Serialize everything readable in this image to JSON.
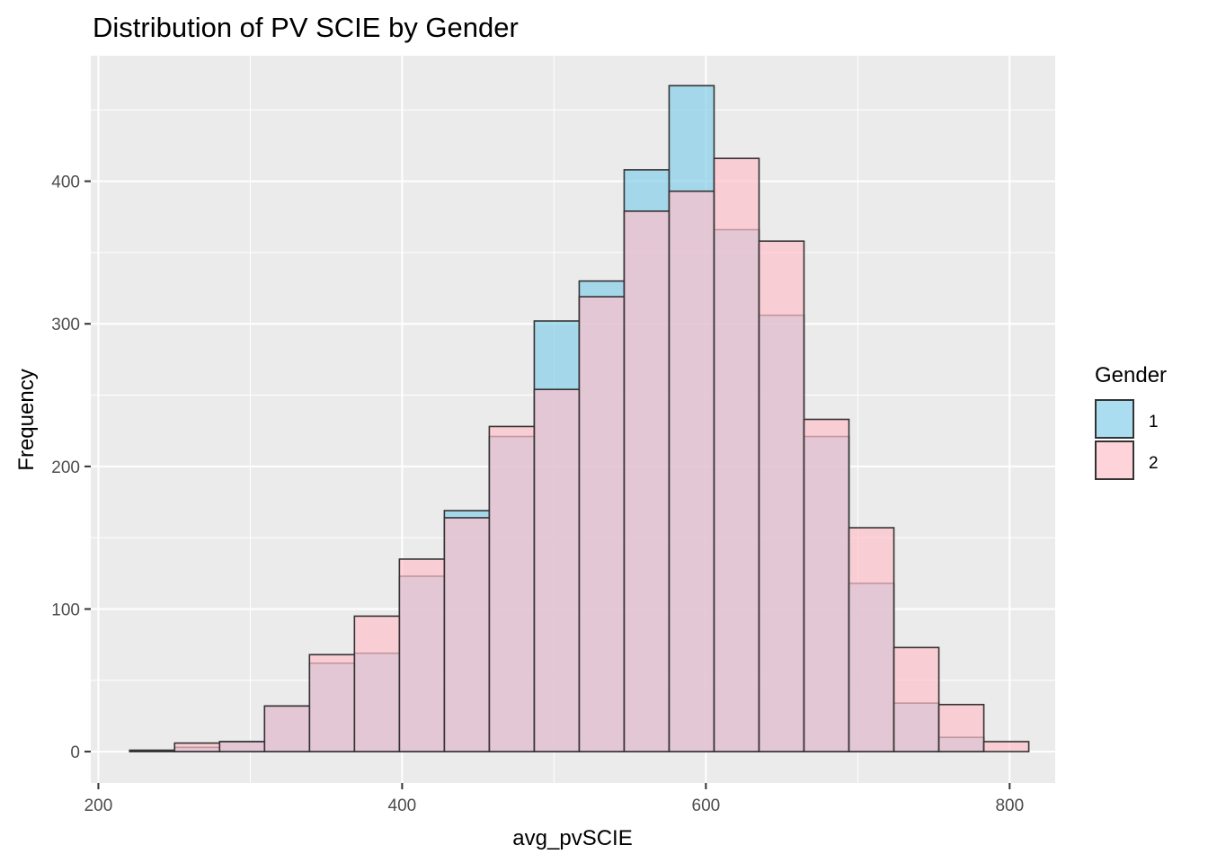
{
  "chart_data": {
    "type": "bar",
    "subtype": "overlaid-histogram",
    "title": "Distribution of PV SCIE by Gender",
    "xlabel": "avg_pvSCIE",
    "ylabel": "Frequency",
    "xlim": [
      195,
      830
    ],
    "ylim": [
      -22,
      488
    ],
    "x_ticks": [
      200,
      400,
      600,
      800
    ],
    "y_ticks": [
      0,
      100,
      200,
      300,
      400
    ],
    "grid": true,
    "bin_edges": [
      220.6,
      250.2,
      279.8,
      309.4,
      339.0,
      368.6,
      398.2,
      427.8,
      457.4,
      487.0,
      516.6,
      546.2,
      575.8,
      605.4,
      635.0,
      664.6,
      694.2,
      723.8,
      753.4,
      783.0,
      812.6
    ],
    "legend": {
      "title": "Gender",
      "position": "right",
      "entries": [
        "1",
        "2"
      ]
    },
    "series": [
      {
        "name": "1",
        "color": "#87ceeb",
        "values": [
          1,
          3,
          7,
          32,
          62,
          69,
          123,
          169,
          221,
          302,
          330,
          408,
          467,
          366,
          306,
          221,
          118,
          34,
          10,
          0
        ]
      },
      {
        "name": "2",
        "color": "#ffc0cb",
        "values": [
          0,
          6,
          7,
          32,
          68,
          95,
          135,
          164,
          228,
          254,
          319,
          379,
          393,
          416,
          358,
          233,
          157,
          73,
          33,
          7
        ]
      }
    ]
  }
}
